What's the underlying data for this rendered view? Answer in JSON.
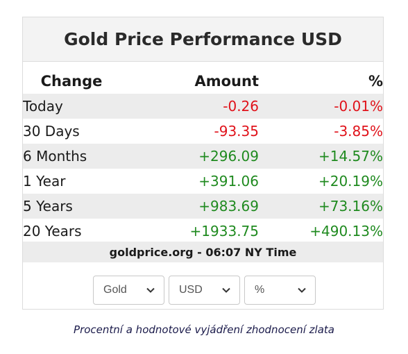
{
  "widget": {
    "title": "Gold Price Performance USD",
    "columns": {
      "change": "Change",
      "amount": "Amount",
      "percent": "%"
    },
    "rows": [
      {
        "label": "Today",
        "amount": "-0.26",
        "percent": "-0.01%",
        "trend": "negative"
      },
      {
        "label": "30 Days",
        "amount": "-93.35",
        "percent": "-3.85%",
        "trend": "negative"
      },
      {
        "label": "6 Months",
        "amount": "+296.09",
        "percent": "+14.57%",
        "trend": "positive"
      },
      {
        "label": "1 Year",
        "amount": "+391.06",
        "percent": "+20.19%",
        "trend": "positive"
      },
      {
        "label": "5 Years",
        "amount": "+983.69",
        "percent": "+73.16%",
        "trend": "positive"
      },
      {
        "label": "20 Years",
        "amount": "+1933.75",
        "percent": "+490.13%",
        "trend": "positive"
      }
    ],
    "source": "goldprice.org - 06:07 NY Time",
    "selects": {
      "metal": "Gold",
      "currency": "USD",
      "unit": "%"
    }
  },
  "caption": "Procentní a hodnotové vyjádření zhodnocení zlata",
  "colors": {
    "negative": "#e0121a",
    "positive": "#1f8a1f",
    "shade": "#ececec"
  },
  "icons": {
    "dropdown": "chevron-down-icon"
  }
}
